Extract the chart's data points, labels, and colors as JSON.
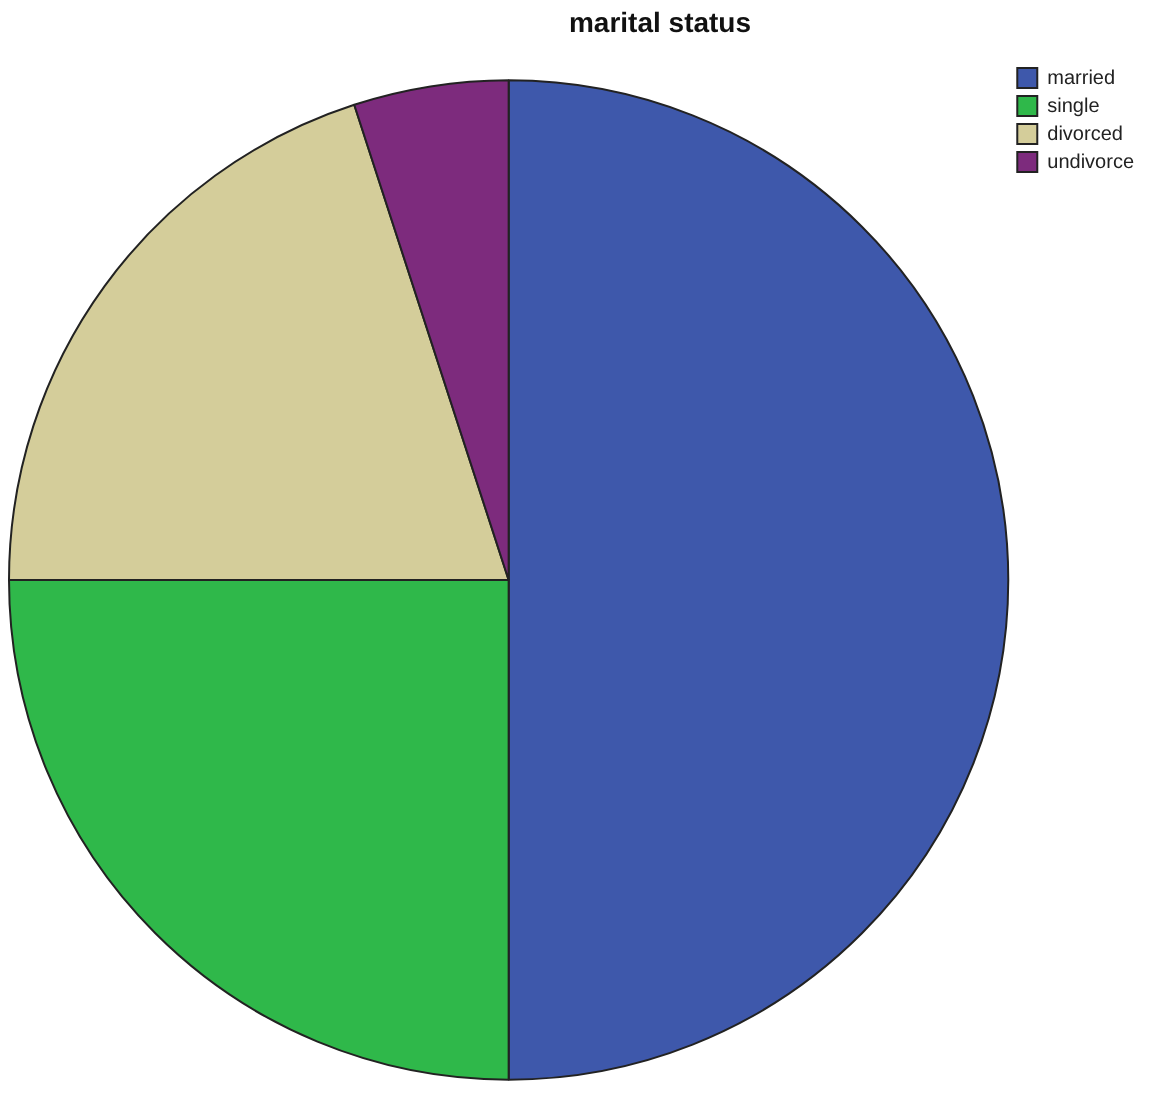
{
  "chart_data": {
    "type": "pie",
    "title": "marital status",
    "categories": [
      "married",
      "single",
      "divorced",
      "undivorce"
    ],
    "values": [
      50,
      25,
      20,
      5
    ],
    "colors": [
      "#3e58ab",
      "#2fb84a",
      "#d4cd9a",
      "#7d2b7d"
    ],
    "legend": "top right"
  }
}
